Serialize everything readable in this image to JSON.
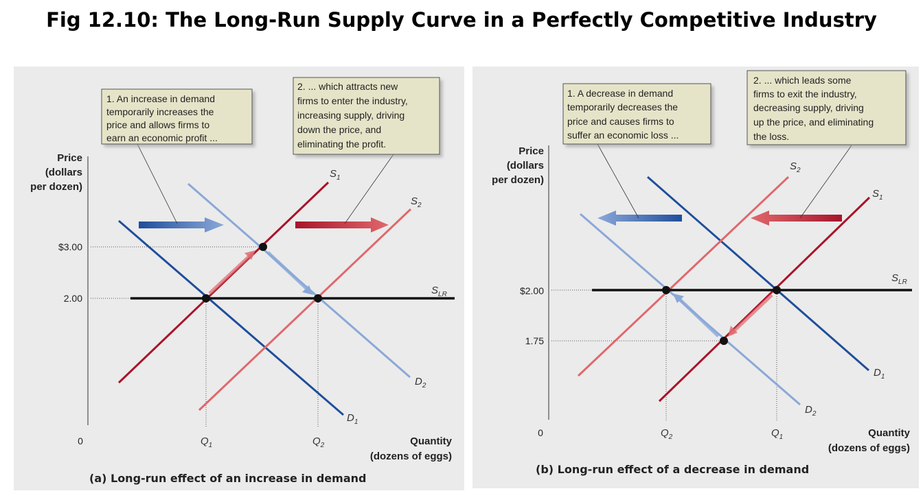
{
  "title": "Fig 12.10: The Long-Run Supply Curve in a Perfectly Competitive Industry",
  "colors": {
    "panel_bg": "#ebebeb",
    "callout_bg": "#e6e4c8",
    "dark_blue": "#1f4e9c",
    "light_blue": "#8aa8d8",
    "dark_red": "#a8142a",
    "light_red": "#e0686c",
    "slr": "#111111"
  },
  "panel_a": {
    "caption": "(a) Long-run effect of an increase in demand",
    "y_axis_label": [
      "Price",
      "(dollars",
      "per dozen)"
    ],
    "x_axis_label": [
      "Quantity",
      "(dozens of eggs)"
    ],
    "origin": "0",
    "y_ticks": [
      "$3.00",
      "2.00"
    ],
    "x_ticks": [
      {
        "main": "Q",
        "sub": "1"
      },
      {
        "main": "Q",
        "sub": "2"
      }
    ],
    "curves": {
      "s1": {
        "main": "S",
        "sub": "1"
      },
      "s2": {
        "main": "S",
        "sub": "2"
      },
      "slr": {
        "main": "S",
        "sub": "LR"
      },
      "d1": {
        "main": "D",
        "sub": "1"
      },
      "d2": {
        "main": "D",
        "sub": "2"
      }
    },
    "callout_1": [
      "1. An increase in demand",
      "temporarily increases the",
      "price and allows firms to",
      "earn an economic profit ..."
    ],
    "callout_2": [
      "2. ... which attracts new",
      "firms to enter the industry,",
      "increasing supply, driving",
      "down the price, and",
      "eliminating the profit."
    ]
  },
  "panel_b": {
    "caption": "(b) Long-run effect of a decrease in demand",
    "y_axis_label": [
      "Price",
      "(dollars",
      "per dozen)"
    ],
    "x_axis_label": [
      "Quantity",
      "(dozens of eggs)"
    ],
    "origin": "0",
    "y_ticks": [
      "$2.00",
      "1.75"
    ],
    "x_ticks": [
      {
        "main": "Q",
        "sub": "2"
      },
      {
        "main": "Q",
        "sub": "1"
      }
    ],
    "curves": {
      "s1": {
        "main": "S",
        "sub": "1"
      },
      "s2": {
        "main": "S",
        "sub": "2"
      },
      "slr": {
        "main": "S",
        "sub": "LR"
      },
      "d1": {
        "main": "D",
        "sub": "1"
      },
      "d2": {
        "main": "D",
        "sub": "2"
      }
    },
    "callout_1": [
      "1. A decrease in demand",
      "temporarily decreases the",
      "price and causes firms to",
      "suffer an economic loss ..."
    ],
    "callout_2": [
      "2. ... which leads some",
      "firms to exit the industry,",
      "decreasing supply, driving",
      "up the price, and eliminating",
      "the loss."
    ]
  }
}
